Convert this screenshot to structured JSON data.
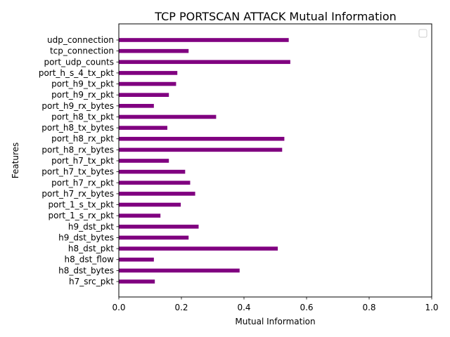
{
  "chart_data": {
    "type": "bar",
    "orientation": "horizontal",
    "title": "TCP PORTSCAN ATTACK Mutual Information",
    "xlabel": "Mutual Information",
    "ylabel": "Features",
    "xlim": [
      0,
      1
    ],
    "xticks": [
      "0.0",
      "0.2",
      "0.4",
      "0.6",
      "0.8",
      "1.0"
    ],
    "bar_color": "#800080",
    "legend": "top-right",
    "grid": false,
    "categories": [
      "udp_connection",
      "tcp_connection",
      "port_udp_counts",
      "port_h_s_4_tx_pkt",
      "port_h9_tx_pkt",
      "port_h9_rx_pkt",
      "port_h9_rx_bytes",
      "port_h8_tx_pkt",
      "port_h8_tx_bytes",
      "port_h8_rx_pkt",
      "port_h8_rx_bytes",
      "port_h7_tx_pkt",
      "port_h7_tx_bytes",
      "port_h7_rx_pkt",
      "port_h7_rx_bytes",
      "port_1_s_tx_pkt",
      "port_1_s_rx_pkt",
      "h9_dst_pkt",
      "h9_dst_bytes",
      "h8_dst_pkt",
      "h8_dst_flow",
      "h8_dst_bytes",
      "h7_src_pkt"
    ],
    "values": [
      0.543,
      0.223,
      0.548,
      0.187,
      0.183,
      0.16,
      0.112,
      0.311,
      0.155,
      0.529,
      0.522,
      0.16,
      0.212,
      0.228,
      0.244,
      0.198,
      0.133,
      0.255,
      0.223,
      0.508,
      0.112,
      0.386,
      0.115
    ]
  }
}
